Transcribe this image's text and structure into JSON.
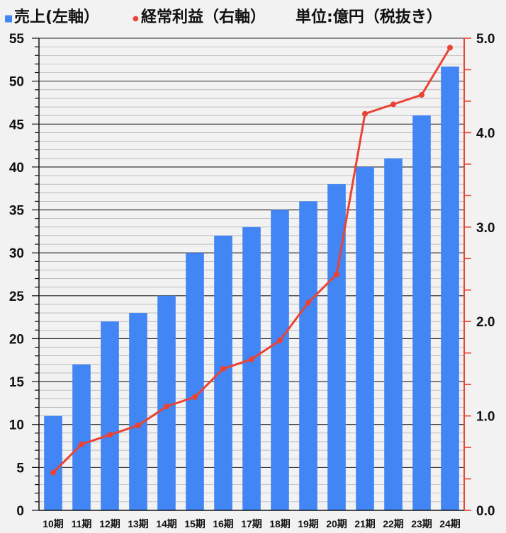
{
  "legend": {
    "sales_marker": "■",
    "sales_label": "売上(左軸）",
    "profit_marker": "●",
    "profit_label": "経常利益（右軸）",
    "unit_label": "単位:億円（税抜き）"
  },
  "colors": {
    "bar": "#4285f4",
    "line": "#ea4335",
    "grid": "#000000",
    "background": "#f2f2f2"
  },
  "chart_data": {
    "type": "bar",
    "categories": [
      "10期",
      "11期",
      "12期",
      "13期",
      "14期",
      "15期",
      "16期",
      "17期",
      "18期",
      "19期",
      "20期",
      "21期",
      "22期",
      "23期",
      "24期"
    ],
    "series": [
      {
        "name": "売上(左軸）",
        "type": "bar",
        "axis": "left",
        "values": [
          11,
          17,
          22,
          23,
          25,
          30,
          32,
          33,
          35,
          36,
          38,
          40,
          41,
          46,
          51.7
        ]
      },
      {
        "name": "経常利益（右軸）",
        "type": "line",
        "axis": "right",
        "values": [
          0.4,
          0.7,
          0.8,
          0.9,
          1.1,
          1.2,
          1.5,
          1.6,
          1.8,
          2.2,
          2.5,
          4.2,
          4.3,
          4.4,
          4.9
        ]
      }
    ],
    "y_left": {
      "ylim": [
        0,
        55
      ],
      "ticks": [
        "0",
        "5",
        "10",
        "15",
        "20",
        "25",
        "30",
        "35",
        "40",
        "45",
        "50",
        "55"
      ]
    },
    "y_right": {
      "ylim": [
        0,
        5
      ],
      "ticks": [
        "0.0",
        "1.0",
        "2.0",
        "3.0",
        "4.0",
        "5.0"
      ]
    },
    "grid": true,
    "legend_position": "top"
  }
}
